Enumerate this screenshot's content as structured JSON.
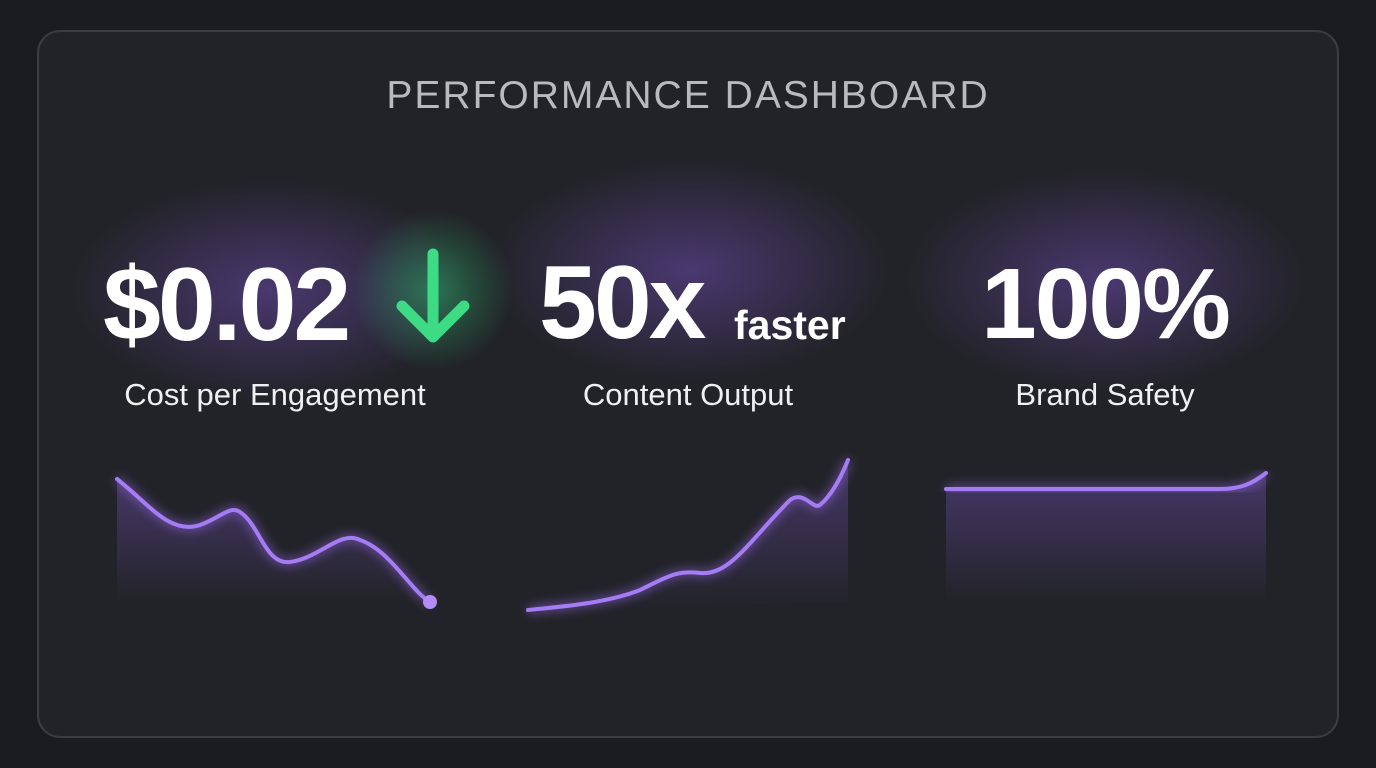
{
  "header": {
    "title": "PERFORMANCE DASHBOARD"
  },
  "metrics": [
    {
      "value": "$0.02",
      "label": "Cost per Engagement"
    },
    {
      "value": "50x",
      "suffix": "faster",
      "label": "Content Output"
    },
    {
      "value": "100%",
      "label": "Brand Safety"
    }
  ]
}
